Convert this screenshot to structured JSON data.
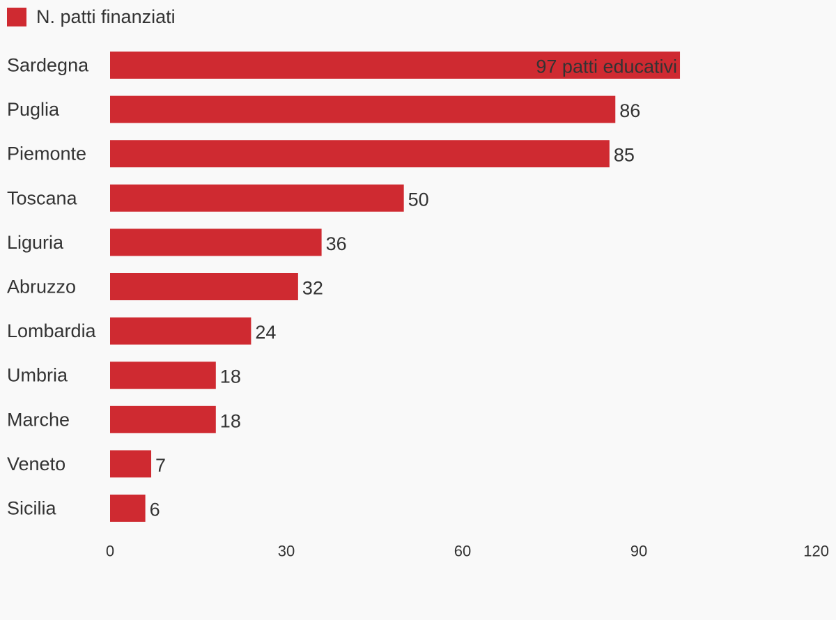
{
  "legend": {
    "label": "N. patti finanziati",
    "color": "#cf2a31"
  },
  "chart_data": {
    "type": "bar",
    "orientation": "horizontal",
    "categories": [
      "Sardegna",
      "Puglia",
      "Piemonte",
      "Toscana",
      "Liguria",
      "Abruzzo",
      "Lombardia",
      "Umbria",
      "Marche",
      "Veneto",
      "Sicilia"
    ],
    "series": [
      {
        "name": "N. patti finanziati",
        "values": [
          97,
          86,
          85,
          50,
          36,
          32,
          24,
          18,
          18,
          7,
          6
        ],
        "color": "#cf2a31"
      }
    ],
    "data_labels": [
      "97 patti educativi",
      "86",
      "85",
      "50",
      "36",
      "32",
      "24",
      "18",
      "18",
      "7",
      "6"
    ],
    "xlim": [
      0,
      120
    ],
    "x_ticks": [
      "0",
      "30",
      "60",
      "90",
      "120"
    ],
    "grid": false,
    "legend_position": "top-left"
  }
}
